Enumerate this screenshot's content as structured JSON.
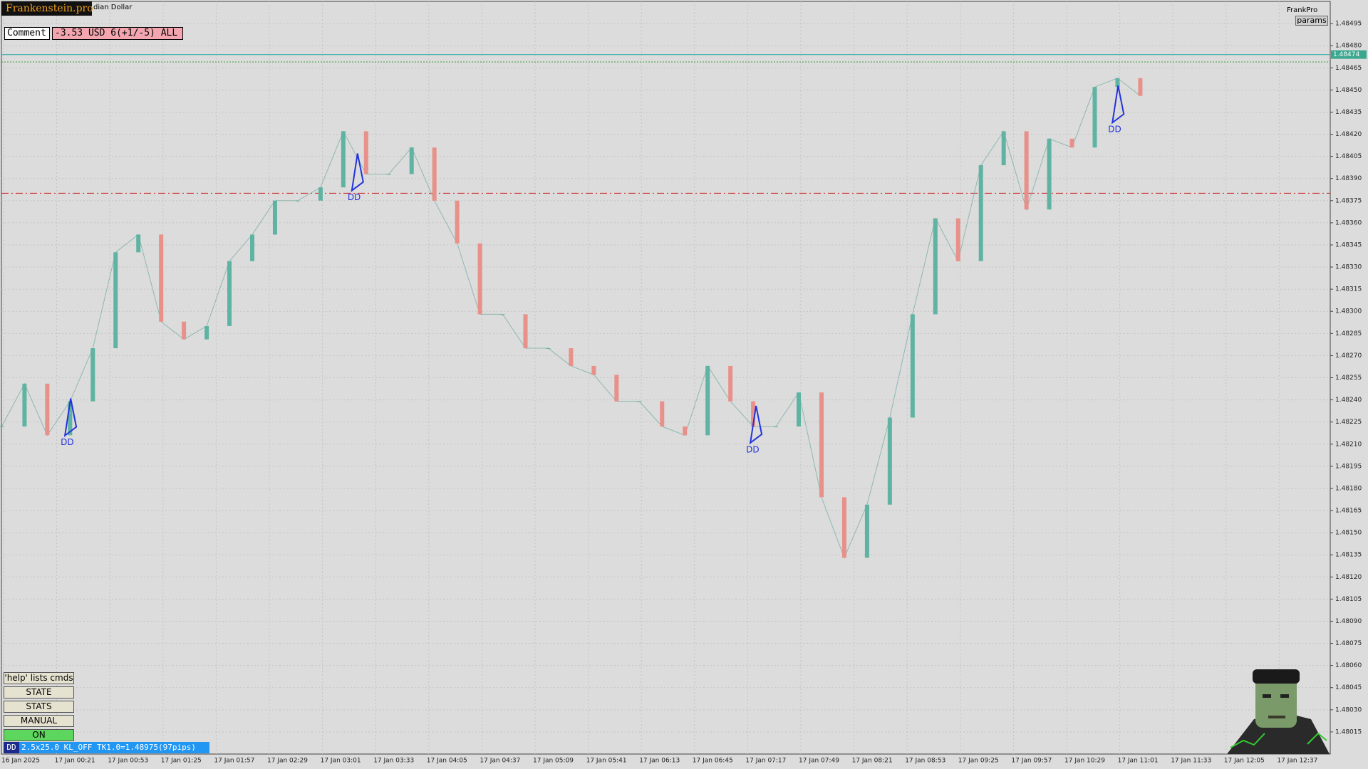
{
  "ui": {
    "brand": "Frankenstein.pro",
    "symbol": "dian Dollar",
    "comment_label": "Comment",
    "comment_value": "-3.53 USD 6(+1/-5) ALL",
    "top_right": "FrankPro",
    "params": "params",
    "buttons": [
      "'help' lists cmds",
      "STATE",
      "STATS",
      "MANUAL",
      "ON"
    ],
    "status_tag": "DD",
    "status_text": "2.5x25.0 KL_OFF TK1.0=1.48975(97pips)"
  },
  "chart_data": {
    "type": "candlestick",
    "x_labels": [
      "16 Jan 2025",
      "17 Jan 00:21",
      "17 Jan 00:53",
      "17 Jan 01:25",
      "17 Jan 01:57",
      "17 Jan 02:29",
      "17 Jan 03:01",
      "17 Jan 03:33",
      "17 Jan 04:05",
      "17 Jan 04:37",
      "17 Jan 05:09",
      "17 Jan 05:41",
      "17 Jan 06:13",
      "17 Jan 06:45",
      "17 Jan 07:17",
      "17 Jan 07:49",
      "17 Jan 08:21",
      "17 Jan 08:53",
      "17 Jan 09:25",
      "17 Jan 09:57",
      "17 Jan 10:29",
      "17 Jan 11:01",
      "17 Jan 11:33",
      "17 Jan 12:05",
      "17 Jan 12:37"
    ],
    "values": [
      1.48222,
      1.48251,
      1.48216,
      1.48239,
      1.48275,
      1.4834,
      1.48352,
      1.48293,
      1.48281,
      1.4829,
      1.48334,
      1.48352,
      1.48375,
      1.48375,
      1.48384,
      1.48422,
      1.48393,
      1.48393,
      1.48411,
      1.48375,
      1.48346,
      1.48298,
      1.48298,
      1.48275,
      1.48275,
      1.48263,
      1.48257,
      1.48239,
      1.48239,
      1.48222,
      1.48216,
      1.48263,
      1.48239,
      1.48222,
      1.48222,
      1.48245,
      1.48174,
      1.48133,
      1.48169,
      1.48228,
      1.48298,
      1.48363,
      1.48334,
      1.48399,
      1.48422,
      1.48369,
      1.48417,
      1.48411,
      1.48452,
      1.48458,
      1.48446
    ],
    "up_color": "#5fb3a3",
    "down_color": "#e8908a",
    "ylim": [
      1.48,
      1.4851
    ],
    "yticks": [
      1.48495,
      {
        "value": 1.4848,
        "label": "1.48480"
      },
      1.48465,
      {
        "value": 1.4845,
        "label": "1.48450"
      },
      1.48435,
      {
        "value": 1.4842,
        "label": "1.48420"
      },
      1.48405,
      {
        "value": 1.4839,
        "label": "1.48390"
      },
      1.48375,
      {
        "value": 1.4836,
        "label": "1.48360"
      },
      1.48345,
      {
        "value": 1.4833,
        "label": "1.48330"
      },
      1.48315,
      {
        "value": 1.483,
        "label": "1.48300"
      },
      1.48285,
      {
        "value": 1.4827,
        "label": "1.48270"
      },
      1.48255,
      {
        "value": 1.4824,
        "label": "1.48240"
      },
      1.48225,
      {
        "value": 1.4821,
        "label": "1.48210"
      },
      1.48195,
      {
        "value": 1.4818,
        "label": "1.48180"
      },
      1.48165,
      {
        "value": 1.4815,
        "label": "1.48150"
      },
      1.48135,
      {
        "value": 1.4812,
        "label": "1.48120"
      },
      1.48105,
      {
        "value": 1.4809,
        "label": "1.48090"
      },
      1.48075,
      {
        "value": 1.4806,
        "label": "1.48060"
      },
      1.48045,
      {
        "value": 1.4803,
        "label": "1.48030"
      },
      1.48015
    ],
    "grid": true,
    "current_price": 1.48474,
    "bid_level": 1.48469,
    "stop_level": 1.4838,
    "annotations": [
      {
        "text": "DD",
        "index": 2.9,
        "price": 1.48212
      },
      {
        "text": "DD",
        "index": 15.5,
        "price": 1.48378
      },
      {
        "text": "DD",
        "index": 33,
        "price": 1.48207
      },
      {
        "text": "DD",
        "index": 48.9,
        "price": 1.48424
      }
    ]
  }
}
